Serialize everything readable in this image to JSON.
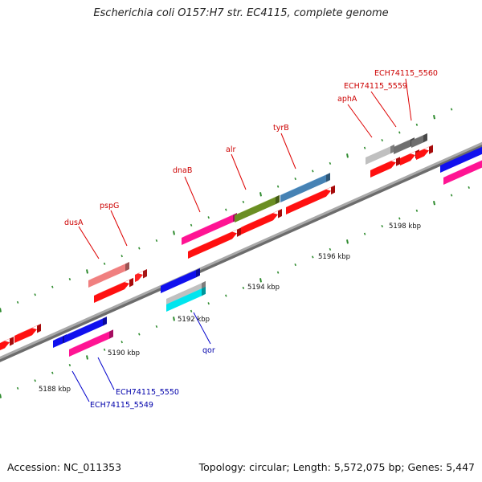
{
  "title": "Escherichia coli O157:H7 str. EC4115, complete genome",
  "footer": {
    "accession": "Accession: NC_011353",
    "topology": "Topology: circular; Length: 5,572,075 bp; Genes: 5,447"
  },
  "colors": {
    "backbone": "#8f8f8f",
    "tick": "#2e8b2e",
    "label_red": "#cc0000",
    "label_blue": "#0000aa"
  },
  "kbp_labels": [
    "5188 kbp",
    "5190 kbp",
    "5192 kbp",
    "5194 kbp",
    "5196 kbp",
    "5198 kbp"
  ],
  "gene_labels": [
    {
      "name": "dusA",
      "color": "red"
    },
    {
      "name": "pspG",
      "color": "red"
    },
    {
      "name": "dnaB",
      "color": "red"
    },
    {
      "name": "alr",
      "color": "red"
    },
    {
      "name": "tyrB",
      "color": "red"
    },
    {
      "name": "aphA",
      "color": "red"
    },
    {
      "name": "ECH74115_5559",
      "color": "red"
    },
    {
      "name": "ECH74115_5560",
      "color": "red"
    },
    {
      "name": "qor",
      "color": "blue"
    },
    {
      "name": "ECH74115_5550",
      "color": "blue"
    },
    {
      "name": "ECH74115_5549",
      "color": "blue"
    }
  ]
}
